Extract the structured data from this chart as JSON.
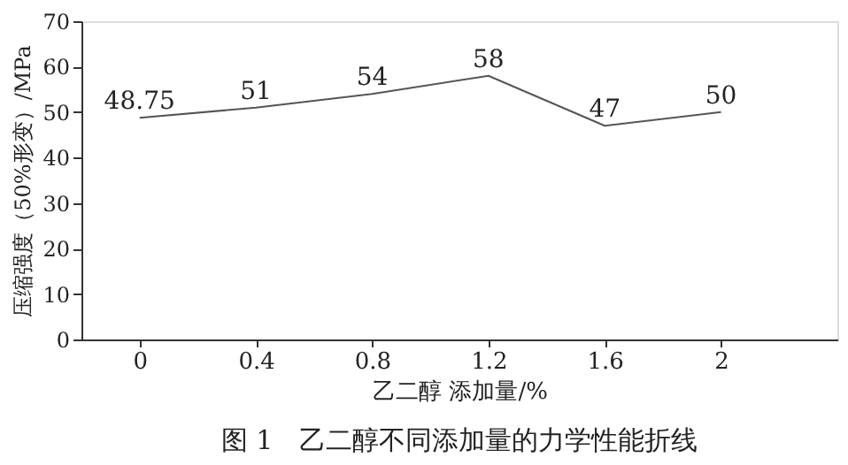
{
  "chart_data": {
    "type": "line",
    "categories": [
      "0",
      "0.4",
      "0.8",
      "1.2",
      "1.6",
      "2"
    ],
    "values": [
      48.75,
      51,
      54,
      58,
      47,
      50
    ],
    "color": "#555555",
    "ylim": [
      0,
      70
    ],
    "yticks": [
      0,
      10,
      20,
      30,
      40,
      50,
      60,
      70
    ],
    "xlabel": "乙二醇 添加量/%",
    "ylabel": "压缩强度（50%形变）/MPa",
    "annotations": [
      "图 1　乙二醇不同添加量的力学性能折线"
    ],
    "data_labels": true,
    "grid": false,
    "marker": "none",
    "line_style": "solid"
  }
}
